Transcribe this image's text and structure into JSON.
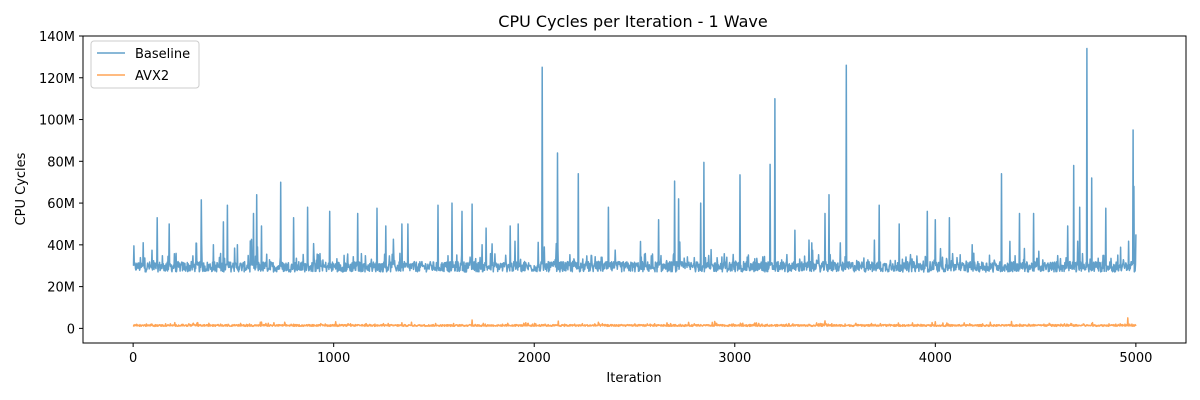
{
  "chart_data": {
    "type": "line",
    "title": "CPU Cycles per Iteration - 1 Wave",
    "xlabel": "Iteration",
    "ylabel": "CPU Cycles",
    "xlim": [
      -250,
      5250
    ],
    "ylim": [
      -7000000,
      140000000
    ],
    "x_ticks": [
      0,
      1000,
      2000,
      3000,
      4000,
      5000
    ],
    "x_tick_labels": [
      "0",
      "1000",
      "2000",
      "3000",
      "4000",
      "5000"
    ],
    "y_ticks": [
      0,
      20000000,
      40000000,
      60000000,
      80000000,
      100000000,
      120000000,
      140000000
    ],
    "y_tick_labels": [
      "0",
      "20M",
      "40M",
      "60M",
      "80M",
      "100M",
      "120M",
      "140M"
    ],
    "grid": false,
    "legend": {
      "position": "top-left"
    },
    "n_iterations": 5000,
    "series": [
      {
        "name": "Baseline",
        "color": "#1f77b4",
        "baseline_band": [
          27000000,
          32000000
        ],
        "spikes": [
          {
            "x": 0,
            "y": 30000000
          },
          {
            "x": 50,
            "y": 41000000
          },
          {
            "x": 120,
            "y": 53000000
          },
          {
            "x": 180,
            "y": 50000000
          },
          {
            "x": 340,
            "y": 61500000
          },
          {
            "x": 400,
            "y": 40000000
          },
          {
            "x": 450,
            "y": 51000000
          },
          {
            "x": 470,
            "y": 59000000
          },
          {
            "x": 520,
            "y": 40000000
          },
          {
            "x": 600,
            "y": 55000000
          },
          {
            "x": 615,
            "y": 64000000
          },
          {
            "x": 640,
            "y": 49000000
          },
          {
            "x": 735,
            "y": 70000000
          },
          {
            "x": 800,
            "y": 53000000
          },
          {
            "x": 870,
            "y": 58000000
          },
          {
            "x": 980,
            "y": 56000000
          },
          {
            "x": 1120,
            "y": 55000000
          },
          {
            "x": 1215,
            "y": 57500000
          },
          {
            "x": 1260,
            "y": 49000000
          },
          {
            "x": 1340,
            "y": 50000000
          },
          {
            "x": 1370,
            "y": 50000000
          },
          {
            "x": 1520,
            "y": 59000000
          },
          {
            "x": 1590,
            "y": 60000000
          },
          {
            "x": 1640,
            "y": 56000000
          },
          {
            "x": 1690,
            "y": 59500000
          },
          {
            "x": 1760,
            "y": 48000000
          },
          {
            "x": 1880,
            "y": 49000000
          },
          {
            "x": 1920,
            "y": 50000000
          },
          {
            "x": 2040,
            "y": 125000000
          },
          {
            "x": 2115,
            "y": 84000000
          },
          {
            "x": 2220,
            "y": 74000000
          },
          {
            "x": 2370,
            "y": 58000000
          },
          {
            "x": 2620,
            "y": 52000000
          },
          {
            "x": 2700,
            "y": 70500000
          },
          {
            "x": 2720,
            "y": 62000000
          },
          {
            "x": 2830,
            "y": 60000000
          },
          {
            "x": 2845,
            "y": 79500000
          },
          {
            "x": 3025,
            "y": 73500000
          },
          {
            "x": 3175,
            "y": 78500000
          },
          {
            "x": 3200,
            "y": 110000000
          },
          {
            "x": 3300,
            "y": 47000000
          },
          {
            "x": 3450,
            "y": 55000000
          },
          {
            "x": 3470,
            "y": 64000000
          },
          {
            "x": 3555,
            "y": 126000000
          },
          {
            "x": 3720,
            "y": 59000000
          },
          {
            "x": 3820,
            "y": 50000000
          },
          {
            "x": 3960,
            "y": 56000000
          },
          {
            "x": 4000,
            "y": 52000000
          },
          {
            "x": 4070,
            "y": 53000000
          },
          {
            "x": 4330,
            "y": 74000000
          },
          {
            "x": 4420,
            "y": 55000000
          },
          {
            "x": 4490,
            "y": 55000000
          },
          {
            "x": 4660,
            "y": 49000000
          },
          {
            "x": 4690,
            "y": 78000000
          },
          {
            "x": 4720,
            "y": 58000000
          },
          {
            "x": 4755,
            "y": 134000000
          },
          {
            "x": 4780,
            "y": 72000000
          },
          {
            "x": 4850,
            "y": 57500000
          },
          {
            "x": 4985,
            "y": 95000000
          },
          {
            "x": 4990,
            "y": 68000000
          },
          {
            "x": 5000,
            "y": 45000000
          }
        ]
      },
      {
        "name": "AVX2",
        "color": "#ff7f0e",
        "baseline_band": [
          1000000,
          1800000
        ],
        "spikes": [
          {
            "x": 300,
            "y": 2500000
          },
          {
            "x": 640,
            "y": 3000000
          },
          {
            "x": 1010,
            "y": 3200000
          },
          {
            "x": 1690,
            "y": 4000000
          },
          {
            "x": 2120,
            "y": 3500000
          },
          {
            "x": 2900,
            "y": 3300000
          },
          {
            "x": 3450,
            "y": 3600000
          },
          {
            "x": 4000,
            "y": 3200000
          },
          {
            "x": 4380,
            "y": 3300000
          },
          {
            "x": 4960,
            "y": 5000000
          }
        ]
      }
    ]
  }
}
